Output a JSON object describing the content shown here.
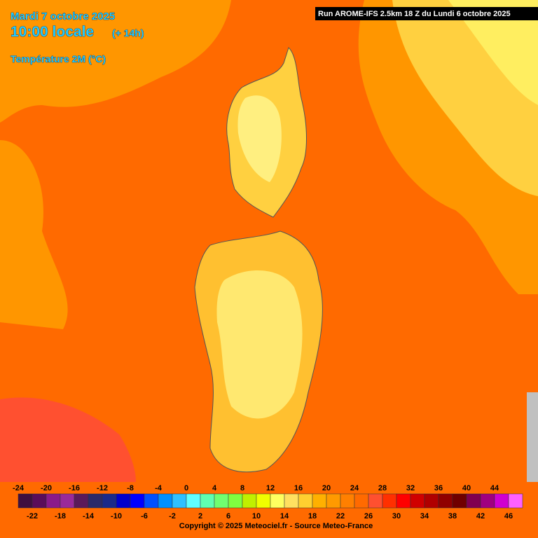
{
  "header": {
    "date": "Mardi 7 octobre 2025",
    "time": "10:00 locale",
    "offset": "(+ 14h)",
    "parameter": "Température 2M (°C)"
  },
  "run": "Run AROME-IFS 2.5km 18 Z du Lundi 6 octobre 2025",
  "legend": {
    "values": [
      -24,
      -22,
      -20,
      -18,
      -16,
      -14,
      -12,
      -10,
      -8,
      -6,
      -4,
      -2,
      0,
      2,
      4,
      6,
      8,
      10,
      12,
      14,
      16,
      18,
      20,
      22,
      24,
      26,
      28,
      30,
      32,
      34,
      36,
      38,
      40,
      42,
      44,
      46
    ],
    "colors": [
      "#3f0f3f",
      "#5a0d5a",
      "#8a1a8a",
      "#9a2a9a",
      "#5a1a5a",
      "#2a2a6a",
      "#1a2a8a",
      "#0000cc",
      "#0000ff",
      "#0050ff",
      "#0090ff",
      "#30c0ff",
      "#60ffff",
      "#60ffb0",
      "#70ff70",
      "#80ff40",
      "#c0f000",
      "#f0ff00",
      "#ffff60",
      "#ffe060",
      "#ffd030",
      "#ffb000",
      "#ff9a00",
      "#ff8000",
      "#ff6a00",
      "#ff5030",
      "#ff3000",
      "#ff0000",
      "#d00000",
      "#b00000",
      "#900000",
      "#700000",
      "#800050",
      "#a00080",
      "#d000d0",
      "#ff60ff"
    ]
  },
  "copyright": "Copyright © 2025 Meteociel.fr - Source Meteo-France"
}
